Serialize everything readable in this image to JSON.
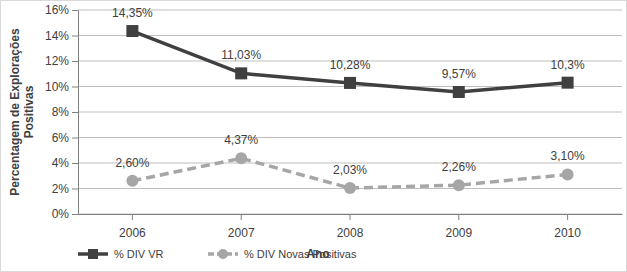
{
  "chart_data": {
    "type": "line",
    "y_label": "Percentagem de Explorações Positivas",
    "x_label": "Ano",
    "categories": [
      "2006",
      "2007",
      "2008",
      "2009",
      "2010"
    ],
    "series": [
      {
        "name": "% DIV VR",
        "color": "#404040",
        "marker": "square",
        "line_style": "solid",
        "values": [
          14.35,
          11.03,
          10.28,
          9.57,
          10.3
        ],
        "value_labels": [
          "14,35%",
          "11,03%",
          "10,28%",
          "9,57%",
          "10,3%"
        ]
      },
      {
        "name": "% DIV Novas Positivas",
        "color": "#a6a6a6",
        "marker": "circle",
        "line_style": "dashed",
        "values": [
          2.6,
          4.37,
          2.03,
          2.26,
          3.1
        ],
        "value_labels": [
          "2,60%",
          "4,37%",
          "2,03%",
          "2,26%",
          "3,10%"
        ]
      }
    ],
    "ylim": [
      0,
      16
    ],
    "yticks": [
      {
        "value": 0,
        "label": "0%"
      },
      {
        "value": 2,
        "label": "2%"
      },
      {
        "value": 4,
        "label": "4%"
      },
      {
        "value": 6,
        "label": "6%"
      },
      {
        "value": 8,
        "label": "8%"
      },
      {
        "value": 10,
        "label": "10%"
      },
      {
        "value": 12,
        "label": "12%"
      },
      {
        "value": 14,
        "label": "14%"
      },
      {
        "value": 16,
        "label": "16%"
      }
    ],
    "grid": true,
    "data_labels": true,
    "legend": "bottom"
  }
}
